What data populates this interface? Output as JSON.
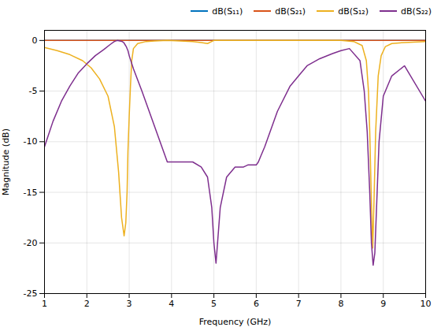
{
  "chart_data": {
    "type": "line",
    "xlabel": "Frequency (GHz)",
    "ylabel": "Magnitude (dB)",
    "xlim": [
      1,
      10
    ],
    "ylim": [
      -25,
      1
    ],
    "xticks": [
      1,
      2,
      3,
      4,
      5,
      6,
      7,
      8,
      9,
      10
    ],
    "yticks": [
      0,
      -5,
      -10,
      -15,
      -20,
      -25
    ],
    "grid": true,
    "legend": "upper right",
    "series": [
      {
        "name": "dB(S₁₁)",
        "color": "#0072BD",
        "x": [
          1,
          10
        ],
        "values": [
          0,
          0
        ]
      },
      {
        "name": "dB(S₂₁)",
        "color": "#D95319",
        "x": [
          1,
          10
        ],
        "values": [
          0,
          0
        ]
      },
      {
        "name": "dB(S₁₂)",
        "color": "#EDB120",
        "x": [
          1.0,
          1.3,
          1.6,
          1.9,
          2.1,
          2.3,
          2.5,
          2.65,
          2.75,
          2.82,
          2.88,
          2.92,
          2.95,
          2.97,
          3.0,
          3.03,
          3.06,
          3.1,
          3.2,
          3.4,
          3.6,
          3.9,
          4.2,
          4.5,
          4.7,
          4.85,
          4.95,
          5.0,
          5.1,
          5.3,
          5.6,
          6.0,
          6.5,
          7.0,
          7.5,
          8.0,
          8.3,
          8.5,
          8.6,
          8.65,
          8.68,
          8.72,
          8.75,
          8.78,
          8.82,
          8.88,
          8.95,
          9.05,
          9.2,
          9.5,
          9.8,
          10.0
        ],
        "values": [
          -0.7,
          -1.0,
          -1.4,
          -2.0,
          -2.7,
          -3.8,
          -5.5,
          -8.5,
          -13.0,
          -17.5,
          -19.3,
          -18.0,
          -15.0,
          -11.0,
          -7.5,
          -4.5,
          -2.0,
          -0.8,
          -0.3,
          -0.1,
          -0.05,
          0.0,
          -0.05,
          -0.1,
          -0.2,
          -0.3,
          -0.1,
          0.0,
          0.0,
          0.0,
          0.0,
          0.0,
          0.0,
          0.0,
          0.0,
          0.0,
          -0.1,
          -0.5,
          -2.0,
          -5.0,
          -9.0,
          -16.0,
          -20.5,
          -16.0,
          -9.0,
          -3.5,
          -1.5,
          -0.6,
          -0.3,
          -0.2,
          -0.15,
          -0.1
        ]
      },
      {
        "name": "dB(S₂₂)",
        "color": "#7E2F8E",
        "x": [
          1.0,
          1.2,
          1.4,
          1.6,
          1.8,
          2.0,
          2.2,
          2.4,
          2.55,
          2.65,
          2.72,
          2.78,
          2.83,
          2.87,
          2.9,
          2.93,
          2.97,
          3.0,
          3.1,
          3.3,
          3.6,
          3.9,
          4.2,
          4.5,
          4.7,
          4.85,
          4.95,
          5.0,
          5.05,
          5.15,
          5.3,
          5.5,
          5.6,
          5.7,
          5.8,
          5.85,
          5.9,
          5.95,
          6.0,
          6.05,
          6.1,
          6.2,
          6.5,
          6.8,
          7.0,
          7.2,
          7.5,
          7.8,
          8.0,
          8.2,
          8.45,
          8.55,
          8.62,
          8.68,
          8.72,
          8.76,
          8.8,
          8.85,
          8.9,
          9.0,
          9.2,
          9.5,
          10.0
        ],
        "values": [
          -10.5,
          -8.0,
          -6.0,
          -4.5,
          -3.2,
          -2.3,
          -1.5,
          -0.9,
          -0.4,
          -0.1,
          0.0,
          -0.05,
          -0.1,
          -0.2,
          -0.4,
          -0.6,
          -1.0,
          -1.5,
          -2.8,
          -5.0,
          -8.5,
          -12.0,
          -12.0,
          -12.0,
          -12.5,
          -13.5,
          -16.5,
          -20.0,
          -22.0,
          -16.5,
          -13.5,
          -12.5,
          -12.5,
          -12.5,
          -12.3,
          -12.3,
          -12.3,
          -12.3,
          -12.3,
          -12.0,
          -11.5,
          -10.5,
          -7.0,
          -4.5,
          -3.5,
          -2.5,
          -1.8,
          -1.3,
          -1.0,
          -0.8,
          -2.0,
          -5.0,
          -9.0,
          -15.0,
          -20.0,
          -22.2,
          -21.0,
          -15.5,
          -10.0,
          -5.5,
          -3.5,
          -2.5,
          -6.0
        ]
      }
    ]
  }
}
